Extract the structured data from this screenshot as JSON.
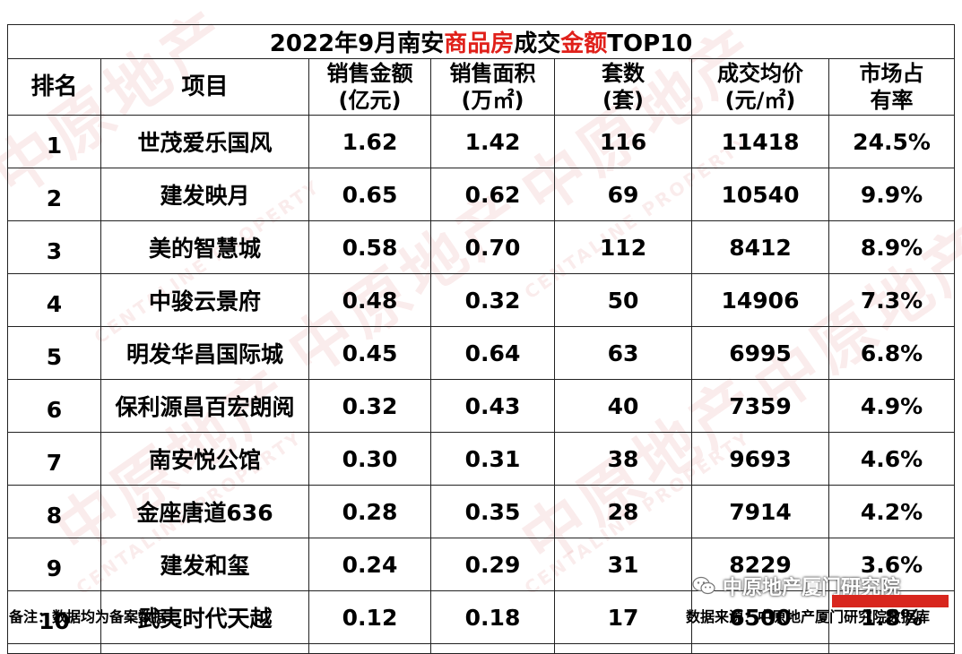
{
  "title": {
    "part1": "2022年9月南安",
    "highlight1": "商品房",
    "part2": "成交",
    "highlight2": "金额",
    "part3": "TOP10"
  },
  "headers": {
    "rank": "排名",
    "project": "项目",
    "amount": [
      "销售金额",
      "(亿元)"
    ],
    "area": [
      "销售面积",
      "(万㎡)"
    ],
    "units": [
      "套数",
      "(套)"
    ],
    "price": [
      "成交均价",
      "(元/㎡)"
    ],
    "share": [
      "市场占",
      "有率"
    ]
  },
  "rows": [
    {
      "rank": "1",
      "project": "世茂爱乐国风",
      "amount": "1.62",
      "area": "1.42",
      "units": "116",
      "price": "11418",
      "share": "24.5%"
    },
    {
      "rank": "2",
      "project": "建发映月",
      "amount": "0.65",
      "area": "0.62",
      "units": "69",
      "price": "10540",
      "share": "9.9%"
    },
    {
      "rank": "3",
      "project": "美的智慧城",
      "amount": "0.58",
      "area": "0.70",
      "units": "112",
      "price": "8412",
      "share": "8.9%"
    },
    {
      "rank": "4",
      "project": "中骏云景府",
      "amount": "0.48",
      "area": "0.32",
      "units": "50",
      "price": "14906",
      "share": "7.3%"
    },
    {
      "rank": "5",
      "project": "明发华昌国际城",
      "amount": "0.45",
      "area": "0.64",
      "units": "63",
      "price": "6995",
      "share": "6.8%"
    },
    {
      "rank": "6",
      "project": "保利源昌百宏朗阅",
      "amount": "0.32",
      "area": "0.43",
      "units": "40",
      "price": "7359",
      "share": "4.9%"
    },
    {
      "rank": "7",
      "project": "南安悦公馆",
      "amount": "0.30",
      "area": "0.31",
      "units": "38",
      "price": "9693",
      "share": "4.6%"
    },
    {
      "rank": "8",
      "project": "金座唐道636",
      "amount": "0.28",
      "area": "0.35",
      "units": "28",
      "price": "7914",
      "share": "4.2%"
    },
    {
      "rank": "9",
      "project": "建发和玺",
      "amount": "0.24",
      "area": "0.29",
      "units": "31",
      "price": "8229",
      "share": "3.6%"
    },
    {
      "rank": "10",
      "project": "武夷时代天越",
      "amount": "0.12",
      "area": "0.18",
      "units": "17",
      "price": "6500",
      "share": "1.8%"
    }
  ],
  "footer": {
    "note": "备注：数据均为备案数据",
    "source": "数据来源：中原地产厦门研究院数据库",
    "wechat": "中原地产厦门研究院"
  },
  "watermark": {
    "brand_cn": "中原地产",
    "brand_en": "CENTALINE PROPERTY"
  },
  "colors": {
    "highlight": "#e0201a",
    "border": "#222222",
    "watermark": "#c82828"
  }
}
